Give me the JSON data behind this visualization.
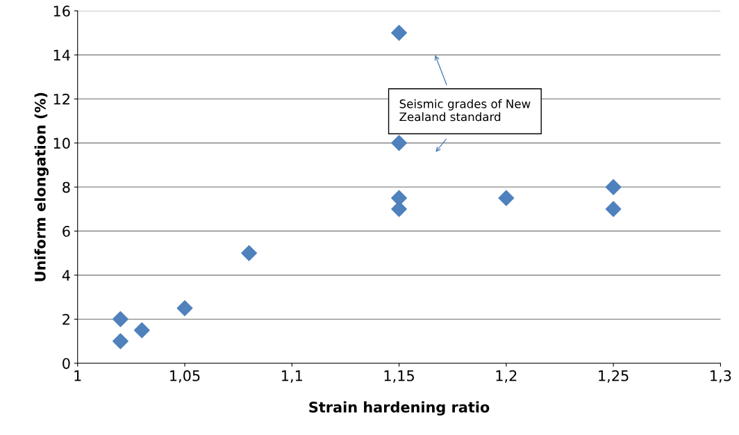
{
  "chart_data": {
    "type": "scatter",
    "xlabel": "Strain hardening ratio",
    "ylabel": "Uniform elongation (%)",
    "x": [
      1.02,
      1.02,
      1.03,
      1.05,
      1.08,
      1.15,
      1.15,
      1.15,
      1.15,
      1.2,
      1.25,
      1.25
    ],
    "series": [
      {
        "color": "#4f81bd",
        "values": [
          2,
          1,
          1.5,
          2.5,
          5,
          15,
          10,
          7.5,
          7,
          7.5,
          8,
          7
        ]
      }
    ],
    "xlim": [
      1,
      1.3
    ],
    "xticks": [
      1,
      {
        "value": 1.05,
        "label": "1,05"
      },
      {
        "value": 1.1,
        "label": "1,1"
      },
      {
        "value": 1.15,
        "label": "1,15"
      },
      {
        "value": 1.2,
        "label": "1,2"
      },
      {
        "value": 1.25,
        "label": "1,25"
      },
      {
        "value": 1.3,
        "label": "1,3"
      }
    ],
    "ylim": [
      0,
      16
    ],
    "yticks": [
      0,
      2,
      4,
      6,
      8,
      10,
      12,
      14,
      16
    ],
    "grid": "y",
    "marker": "diamond",
    "legend": false,
    "annotations": [
      "Seismic grades of New\nZealand standard"
    ]
  }
}
